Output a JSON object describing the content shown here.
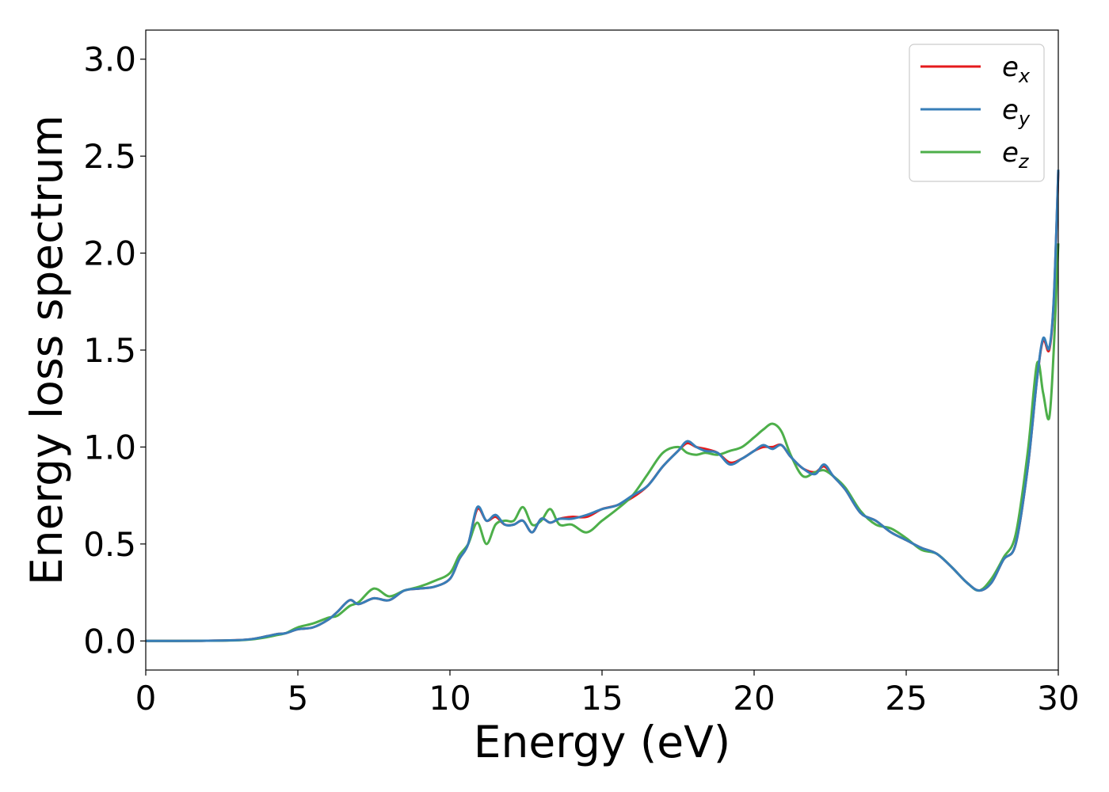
{
  "chart_data": {
    "type": "line",
    "title": "",
    "xlabel": "Energy (eV)",
    "ylabel": "Energy loss spectrum",
    "xlim": [
      0,
      30
    ],
    "ylim": [
      -0.15,
      3.15
    ],
    "xticks": [
      0,
      5,
      10,
      15,
      20,
      25,
      30
    ],
    "xtick_labels": [
      "0",
      "5",
      "10",
      "15",
      "20",
      "25",
      "30"
    ],
    "yticks": [
      0.0,
      0.5,
      1.0,
      1.5,
      2.0,
      2.5,
      3.0
    ],
    "ytick_labels": [
      "0.0",
      "0.5",
      "1.0",
      "1.5",
      "2.0",
      "2.5",
      "3.0"
    ],
    "grid": false,
    "legend_position": "top-right",
    "series": [
      {
        "name": "e_x",
        "legend_base": "e",
        "legend_sub": "x",
        "color": "#e41a1c",
        "x": [
          0,
          1,
          2,
          3,
          3.5,
          4,
          4.3,
          4.6,
          5,
          5.5,
          6,
          6.3,
          6.7,
          7,
          7.5,
          8,
          8.5,
          9,
          9.5,
          10,
          10.3,
          10.6,
          10.9,
          11.2,
          11.5,
          11.8,
          12.1,
          12.4,
          12.7,
          13,
          13.3,
          13.6,
          14,
          14.5,
          15,
          15.5,
          16,
          16.5,
          17,
          17.5,
          17.8,
          18.1,
          18.4,
          18.8,
          19.2,
          19.6,
          20,
          20.3,
          20.6,
          20.9,
          21.2,
          21.6,
          22,
          22.3,
          22.6,
          23,
          23.5,
          24,
          24.5,
          25,
          25.5,
          26,
          26.5,
          27,
          27.4,
          27.8,
          28.2,
          28.6,
          29,
          29.3,
          29.5,
          29.7,
          29.85,
          30
        ],
        "y": [
          0.0,
          0.0,
          0.001,
          0.004,
          0.01,
          0.025,
          0.035,
          0.04,
          0.06,
          0.07,
          0.11,
          0.15,
          0.21,
          0.19,
          0.22,
          0.21,
          0.26,
          0.27,
          0.28,
          0.32,
          0.42,
          0.5,
          0.68,
          0.62,
          0.64,
          0.6,
          0.6,
          0.62,
          0.56,
          0.63,
          0.61,
          0.63,
          0.64,
          0.64,
          0.68,
          0.7,
          0.74,
          0.8,
          0.9,
          0.98,
          1.02,
          1.0,
          0.99,
          0.97,
          0.92,
          0.94,
          0.98,
          1.0,
          1.0,
          1.01,
          0.95,
          0.89,
          0.87,
          0.9,
          0.85,
          0.78,
          0.66,
          0.62,
          0.56,
          0.52,
          0.48,
          0.45,
          0.38,
          0.3,
          0.26,
          0.3,
          0.42,
          0.5,
          0.9,
          1.35,
          1.55,
          1.5,
          1.75,
          2.42
        ]
      },
      {
        "name": "e_y",
        "legend_base": "e",
        "legend_sub": "y",
        "color": "#377eb8",
        "x": [
          0,
          1,
          2,
          3,
          3.5,
          4,
          4.3,
          4.6,
          5,
          5.5,
          6,
          6.3,
          6.7,
          7,
          7.5,
          8,
          8.5,
          9,
          9.5,
          10,
          10.3,
          10.6,
          10.9,
          11.2,
          11.5,
          11.8,
          12.1,
          12.4,
          12.7,
          13,
          13.3,
          13.6,
          14,
          14.5,
          15,
          15.5,
          16,
          16.5,
          17,
          17.5,
          17.8,
          18.1,
          18.4,
          18.8,
          19.2,
          19.6,
          20,
          20.3,
          20.6,
          20.9,
          21.2,
          21.6,
          22,
          22.3,
          22.6,
          23,
          23.5,
          24,
          24.5,
          25,
          25.5,
          26,
          26.5,
          27,
          27.4,
          27.8,
          28.2,
          28.6,
          29,
          29.3,
          29.5,
          29.7,
          29.85,
          30
        ],
        "y": [
          0.0,
          0.0,
          0.001,
          0.004,
          0.01,
          0.025,
          0.035,
          0.04,
          0.06,
          0.07,
          0.11,
          0.15,
          0.21,
          0.19,
          0.22,
          0.21,
          0.26,
          0.27,
          0.28,
          0.32,
          0.42,
          0.5,
          0.69,
          0.62,
          0.65,
          0.6,
          0.6,
          0.62,
          0.56,
          0.63,
          0.61,
          0.63,
          0.63,
          0.65,
          0.68,
          0.7,
          0.75,
          0.8,
          0.9,
          0.98,
          1.03,
          1.0,
          0.98,
          0.97,
          0.91,
          0.94,
          0.98,
          1.01,
          0.99,
          1.01,
          0.95,
          0.89,
          0.86,
          0.91,
          0.85,
          0.78,
          0.66,
          0.62,
          0.56,
          0.52,
          0.48,
          0.45,
          0.38,
          0.3,
          0.26,
          0.3,
          0.42,
          0.5,
          0.9,
          1.35,
          1.56,
          1.51,
          1.76,
          2.43
        ]
      },
      {
        "name": "e_z",
        "legend_base": "e",
        "legend_sub": "z",
        "color": "#4daf4a",
        "x": [
          0,
          1,
          2,
          3,
          3.5,
          4,
          4.3,
          4.6,
          5,
          5.5,
          6,
          6.3,
          6.7,
          7,
          7.5,
          8,
          8.5,
          9,
          9.5,
          10,
          10.3,
          10.6,
          10.9,
          11.2,
          11.5,
          11.8,
          12.1,
          12.4,
          12.7,
          13,
          13.3,
          13.6,
          14,
          14.5,
          15,
          15.5,
          16,
          16.5,
          17,
          17.5,
          17.8,
          18.1,
          18.4,
          18.8,
          19.2,
          19.6,
          20,
          20.3,
          20.6,
          20.9,
          21.2,
          21.6,
          22,
          22.3,
          22.6,
          23,
          23.5,
          24,
          24.5,
          25,
          25.5,
          26,
          26.5,
          27,
          27.4,
          27.8,
          28.2,
          28.6,
          29,
          29.3,
          29.5,
          29.7,
          29.85,
          30
        ],
        "y": [
          0.0,
          0.0,
          0.001,
          0.003,
          0.008,
          0.02,
          0.03,
          0.04,
          0.07,
          0.09,
          0.12,
          0.13,
          0.18,
          0.2,
          0.27,
          0.23,
          0.26,
          0.28,
          0.31,
          0.35,
          0.44,
          0.5,
          0.61,
          0.5,
          0.6,
          0.62,
          0.62,
          0.69,
          0.6,
          0.62,
          0.68,
          0.6,
          0.6,
          0.56,
          0.62,
          0.68,
          0.75,
          0.86,
          0.97,
          1.0,
          0.97,
          0.96,
          0.97,
          0.96,
          0.98,
          1.0,
          1.05,
          1.09,
          1.12,
          1.08,
          0.96,
          0.85,
          0.87,
          0.88,
          0.85,
          0.79,
          0.67,
          0.6,
          0.58,
          0.53,
          0.47,
          0.45,
          0.38,
          0.3,
          0.26,
          0.32,
          0.43,
          0.55,
          0.98,
          1.43,
          1.28,
          1.15,
          1.5,
          2.05
        ]
      }
    ]
  }
}
